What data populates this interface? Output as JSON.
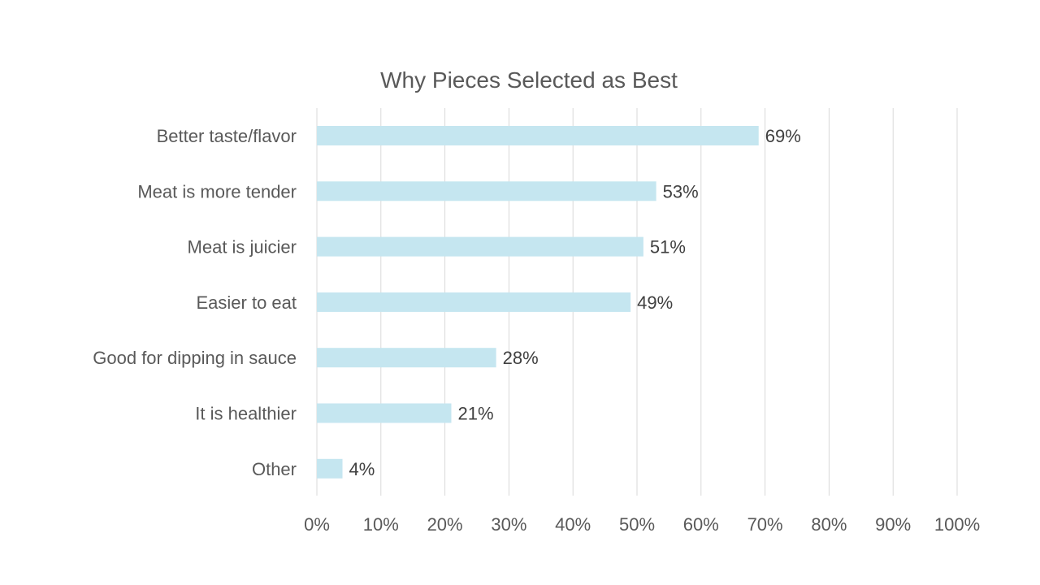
{
  "chart_data": {
    "type": "bar",
    "orientation": "horizontal",
    "title": "Why Pieces Selected as Best",
    "xlabel": "",
    "ylabel": "",
    "categories": [
      "Better taste/flavor",
      "Meat is more tender",
      "Meat is juicier",
      "Easier to eat",
      "Good for dipping in sauce",
      "It is healthier",
      "Other"
    ],
    "values": [
      69,
      53,
      51,
      49,
      28,
      21,
      4
    ],
    "data_labels": [
      "69%",
      "53%",
      "51%",
      "49%",
      "28%",
      "21%",
      "4%"
    ],
    "xlim": [
      0,
      100
    ],
    "ticks": [
      0,
      10,
      20,
      30,
      40,
      50,
      60,
      70,
      80,
      90,
      100
    ],
    "tick_labels": [
      "0%",
      "10%",
      "20%",
      "30%",
      "40%",
      "50%",
      "60%",
      "70%",
      "80%",
      "90%",
      "100%"
    ],
    "grid": true,
    "legend": "none",
    "bar_color": "#c5e6f0"
  }
}
